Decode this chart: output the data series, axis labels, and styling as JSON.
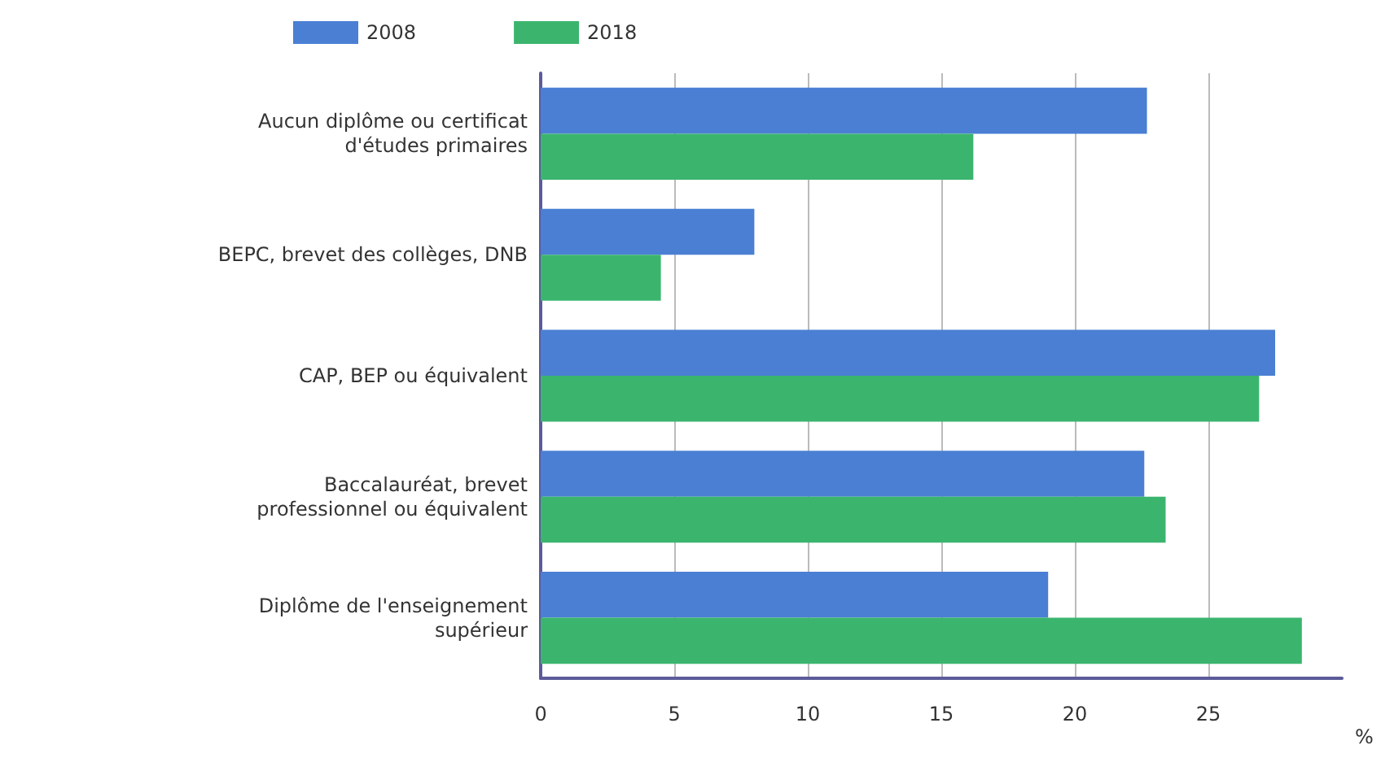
{
  "chart_data": {
    "type": "bar",
    "orientation": "horizontal",
    "categories": [
      "Aucun diplôme ou certificat\nd'études primaires",
      "BEPC, brevet des collèges, DNB",
      "CAP, BEP ou équivalent",
      "Baccalauréat, brevet\nprofessionnel ou équivalent",
      "Diplôme de l'enseignement\nsupérieur"
    ],
    "series": [
      {
        "name": "2008",
        "color": "#4a7fd4",
        "values": [
          22.7,
          8.0,
          27.5,
          22.6,
          19.0
        ]
      },
      {
        "name": "2018",
        "color": "#3bb56e",
        "values": [
          16.2,
          4.5,
          26.9,
          23.4,
          28.5
        ]
      }
    ],
    "xlim": [
      0,
      30
    ],
    "xticks": [
      0,
      5,
      10,
      15,
      20,
      25
    ],
    "xlabel": "%",
    "grid": "x",
    "legend": "top"
  }
}
